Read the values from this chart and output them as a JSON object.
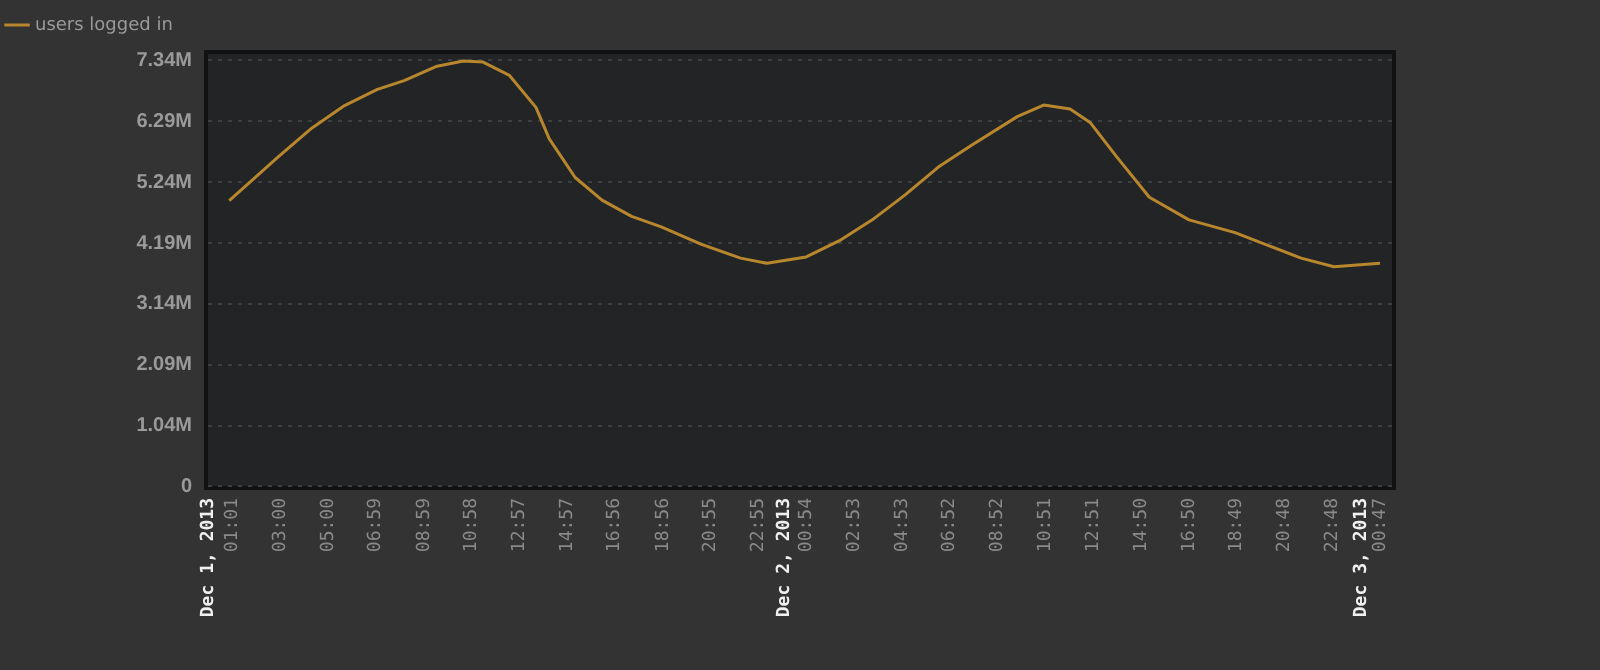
{
  "chart_data": {
    "type": "line",
    "legend": "top left",
    "grid": "y",
    "marker": "none",
    "line_style": "solid",
    "xlim": [
      "2013-12-01T00:00",
      "2013-12-03T01:17"
    ],
    "xticks": [
      {
        "value": "2013-12-01T00:00",
        "label": "Dec 1, 2013"
      },
      {
        "value": "2013-12-01T01:01",
        "label": "01:01"
      },
      {
        "value": "2013-12-01T03:00",
        "label": "03:00"
      },
      {
        "value": "2013-12-01T05:00",
        "label": "05:00"
      },
      {
        "value": "2013-12-01T06:59",
        "label": "06:59"
      },
      {
        "value": "2013-12-01T08:59",
        "label": "08:59"
      },
      {
        "value": "2013-12-01T10:58",
        "label": "10:58"
      },
      {
        "value": "2013-12-01T12:57",
        "label": "12:57"
      },
      {
        "value": "2013-12-01T14:57",
        "label": "14:57"
      },
      {
        "value": "2013-12-01T16:56",
        "label": "16:56"
      },
      {
        "value": "2013-12-01T18:56",
        "label": "18:56"
      },
      {
        "value": "2013-12-01T20:55",
        "label": "20:55"
      },
      {
        "value": "2013-12-01T22:55",
        "label": "22:55"
      },
      {
        "value": "2013-12-02T00:00",
        "label": "Dec 2, 2013"
      },
      {
        "value": "2013-12-02T00:54",
        "label": "00:54"
      },
      {
        "value": "2013-12-02T02:53",
        "label": "02:53"
      },
      {
        "value": "2013-12-02T04:53",
        "label": "04:53"
      },
      {
        "value": "2013-12-02T06:52",
        "label": "06:52"
      },
      {
        "value": "2013-12-02T08:52",
        "label": "08:52"
      },
      {
        "value": "2013-12-02T10:51",
        "label": "10:51"
      },
      {
        "value": "2013-12-02T12:51",
        "label": "12:51"
      },
      {
        "value": "2013-12-02T14:50",
        "label": "14:50"
      },
      {
        "value": "2013-12-02T16:50",
        "label": "16:50"
      },
      {
        "value": "2013-12-02T18:49",
        "label": "18:49"
      },
      {
        "value": "2013-12-02T20:48",
        "label": "20:48"
      },
      {
        "value": "2013-12-02T22:48",
        "label": "22:48"
      },
      {
        "value": "2013-12-03T00:00",
        "label": "Dec 3, 2013"
      },
      {
        "value": "2013-12-03T00:47",
        "label": "00:47"
      }
    ],
    "ylim": [
      0,
      7.45
    ],
    "yticks": [
      0,
      {
        "value": 1.04,
        "label": "1.04M"
      },
      {
        "value": 2.09,
        "label": "2.09M"
      },
      {
        "value": 3.14,
        "label": "3.14M"
      },
      {
        "value": 4.19,
        "label": "4.19M"
      },
      {
        "value": 5.24,
        "label": "5.24M"
      },
      {
        "value": 6.29,
        "label": "6.29M"
      },
      {
        "value": 7.34,
        "label": "7.34M"
      }
    ],
    "series": [
      {
        "name": "users logged in",
        "color": "#b8862d",
        "x": [
          "2013-12-01T00:53",
          "2013-12-01T02:56",
          "2013-12-01T04:19",
          "2013-12-01T05:41",
          "2013-12-01T07:03",
          "2013-12-01T08:10",
          "2013-12-01T09:32",
          "2013-12-01T10:38",
          "2013-12-01T11:27",
          "2013-12-01T12:33",
          "2013-12-01T13:39",
          "2013-12-01T14:12",
          "2013-12-01T15:17",
          "2013-12-01T16:24",
          "2013-12-01T17:38",
          "2013-12-01T18:52",
          "2013-12-01T20:31",
          "2013-12-01T22:10",
          "2013-12-01T23:16",
          "2013-12-02T00:54",
          "2013-12-02T02:17",
          "2013-12-02T03:39",
          "2013-12-02T05:01",
          "2013-12-02T06:24",
          "2013-12-02T07:46",
          "2013-12-02T09:41",
          "2013-12-02T10:47",
          "2013-12-02T11:53",
          "2013-12-02T12:43",
          "2013-12-02T13:49",
          "2013-12-02T15:11",
          "2013-12-02T16:50",
          "2013-12-02T18:45",
          "2013-12-02T20:07",
          "2013-12-02T21:30",
          "2013-12-02T22:52",
          "2013-12-03T00:47"
        ],
        "values": [
          4.92,
          5.68,
          6.17,
          6.56,
          6.84,
          6.99,
          7.24,
          7.33,
          7.31,
          7.08,
          6.53,
          5.99,
          5.32,
          4.93,
          4.65,
          4.47,
          4.17,
          3.93,
          3.84,
          3.95,
          4.23,
          4.59,
          5.02,
          5.5,
          5.87,
          6.37,
          6.57,
          6.5,
          6.27,
          5.68,
          4.98,
          4.59,
          4.37,
          4.15,
          3.93,
          3.78,
          3.84
        ]
      }
    ]
  }
}
